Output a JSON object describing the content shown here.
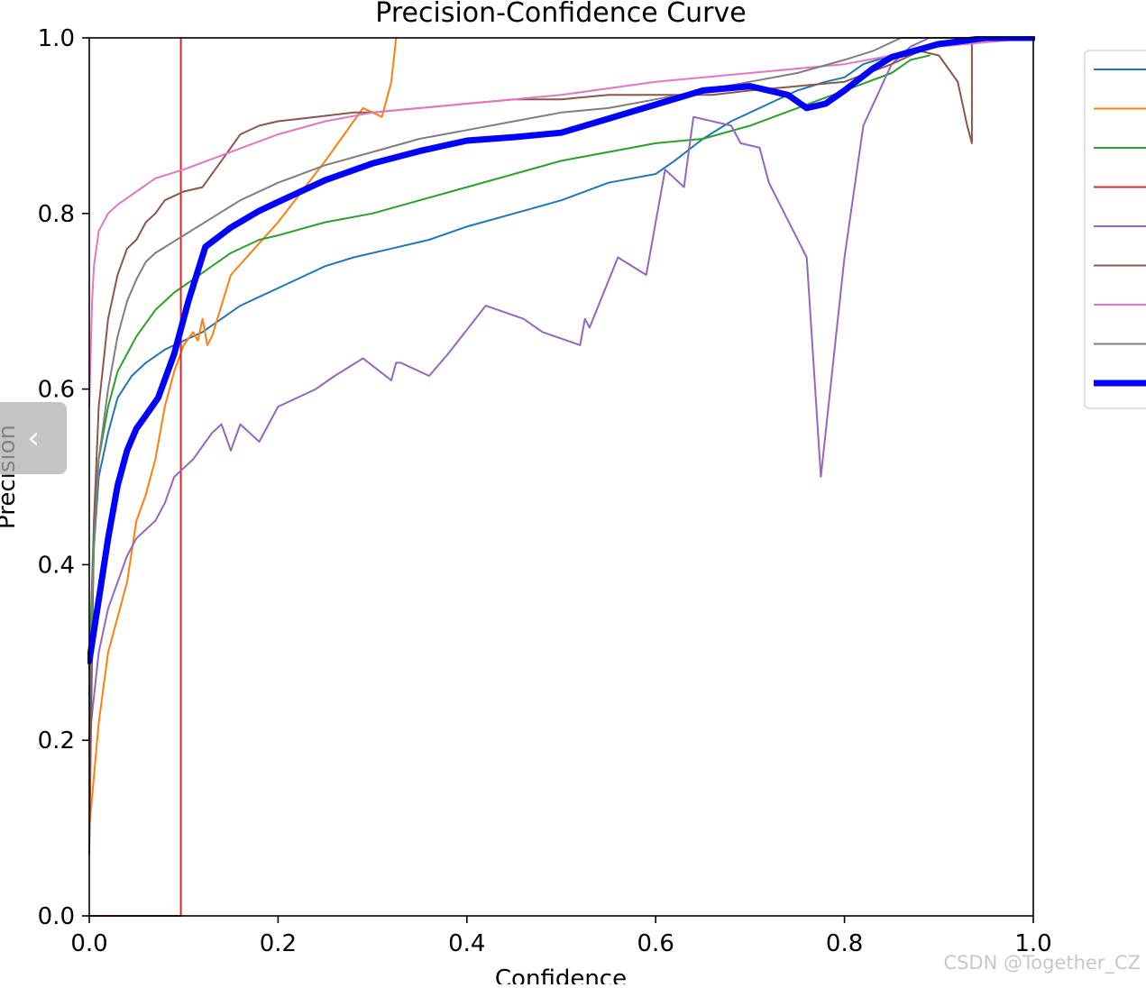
{
  "chart_data": {
    "type": "line",
    "title": "Precision-Confidence Curve",
    "xlabel": "Confidence",
    "ylabel": "Precision",
    "xlim": [
      0,
      1
    ],
    "ylim": [
      0,
      1
    ],
    "x_ticks": [
      "0.0",
      "0.2",
      "0.4",
      "0.6",
      "0.8",
      "1.0"
    ],
    "y_ticks": [
      "0.0",
      "0.2",
      "0.4",
      "0.6",
      "0.8",
      "1.0"
    ],
    "grid": false,
    "legend_position": "upper-right-outside",
    "series": [
      {
        "color": "#1f77b4",
        "width": 2,
        "x": [
          0.0,
          0.005,
          0.01,
          0.02,
          0.03,
          0.045,
          0.06,
          0.08,
          0.1,
          0.12,
          0.14,
          0.16,
          0.18,
          0.2,
          0.22,
          0.25,
          0.28,
          0.32,
          0.36,
          0.4,
          0.45,
          0.5,
          0.55,
          0.6,
          0.62,
          0.65,
          0.68,
          0.7,
          0.72,
          0.75,
          0.78,
          0.8,
          0.82,
          0.85,
          0.88,
          0.9,
          0.95,
          1.0
        ],
        "y": [
          0.2,
          0.42,
          0.5,
          0.55,
          0.59,
          0.615,
          0.63,
          0.645,
          0.655,
          0.665,
          0.68,
          0.695,
          0.705,
          0.715,
          0.725,
          0.74,
          0.75,
          0.76,
          0.77,
          0.785,
          0.8,
          0.815,
          0.835,
          0.845,
          0.86,
          0.885,
          0.905,
          0.915,
          0.925,
          0.94,
          0.95,
          0.955,
          0.97,
          0.98,
          0.985,
          0.995,
          1.0,
          1.0
        ]
      },
      {
        "color": "#ff7f0e",
        "width": 2,
        "x": [
          0.0,
          0.01,
          0.02,
          0.03,
          0.04,
          0.05,
          0.06,
          0.07,
          0.08,
          0.09,
          0.1,
          0.11,
          0.115,
          0.12,
          0.125,
          0.13,
          0.15,
          0.2,
          0.25,
          0.29,
          0.31,
          0.32,
          0.325
        ],
        "y": [
          0.1,
          0.22,
          0.3,
          0.34,
          0.38,
          0.45,
          0.48,
          0.52,
          0.58,
          0.62,
          0.65,
          0.665,
          0.655,
          0.68,
          0.65,
          0.66,
          0.73,
          0.79,
          0.86,
          0.92,
          0.91,
          0.95,
          1.0
        ]
      },
      {
        "color": "#2ca02c",
        "width": 2,
        "x": [
          0.0,
          0.005,
          0.01,
          0.02,
          0.03,
          0.05,
          0.07,
          0.09,
          0.11,
          0.13,
          0.15,
          0.18,
          0.2,
          0.25,
          0.3,
          0.35,
          0.4,
          0.45,
          0.5,
          0.55,
          0.6,
          0.65,
          0.7,
          0.75,
          0.8,
          0.85,
          0.87,
          0.89
        ],
        "y": [
          0.28,
          0.45,
          0.52,
          0.58,
          0.62,
          0.66,
          0.69,
          0.71,
          0.725,
          0.74,
          0.755,
          0.77,
          0.775,
          0.79,
          0.8,
          0.815,
          0.83,
          0.845,
          0.86,
          0.87,
          0.88,
          0.885,
          0.9,
          0.92,
          0.94,
          0.96,
          0.975,
          0.98
        ]
      },
      {
        "color": "#d62728",
        "width": 2,
        "x": [
          0.0,
          0.097,
          0.097
        ],
        "y": [
          0.0,
          0.0,
          1.0
        ]
      },
      {
        "color": "#9467bd",
        "width": 2,
        "x": [
          0.0,
          0.01,
          0.02,
          0.03,
          0.04,
          0.05,
          0.06,
          0.07,
          0.08,
          0.09,
          0.1,
          0.11,
          0.13,
          0.14,
          0.15,
          0.16,
          0.17,
          0.18,
          0.19,
          0.2,
          0.24,
          0.26,
          0.29,
          0.32,
          0.325,
          0.33,
          0.36,
          0.38,
          0.42,
          0.46,
          0.48,
          0.52,
          0.525,
          0.53,
          0.56,
          0.59,
          0.61,
          0.63,
          0.635,
          0.64,
          0.68,
          0.69,
          0.71,
          0.72,
          0.76,
          0.775,
          0.8,
          0.82,
          0.85,
          0.87,
          0.89
        ],
        "y": [
          0.2,
          0.3,
          0.35,
          0.38,
          0.41,
          0.43,
          0.44,
          0.45,
          0.47,
          0.5,
          0.51,
          0.52,
          0.55,
          0.56,
          0.53,
          0.56,
          0.55,
          0.54,
          0.56,
          0.58,
          0.6,
          0.615,
          0.635,
          0.61,
          0.63,
          0.63,
          0.615,
          0.64,
          0.695,
          0.68,
          0.665,
          0.65,
          0.68,
          0.67,
          0.75,
          0.73,
          0.85,
          0.83,
          0.87,
          0.91,
          0.9,
          0.88,
          0.875,
          0.835,
          0.75,
          0.5,
          0.75,
          0.9,
          0.97,
          0.99,
          1.0
        ]
      },
      {
        "color": "#8c564b",
        "width": 2,
        "x": [
          0.0,
          0.005,
          0.01,
          0.02,
          0.03,
          0.04,
          0.05,
          0.06,
          0.07,
          0.08,
          0.09,
          0.1,
          0.12,
          0.14,
          0.16,
          0.18,
          0.2,
          0.24,
          0.28,
          0.3,
          0.35,
          0.4,
          0.45,
          0.5,
          0.55,
          0.6,
          0.62,
          0.64,
          0.66,
          0.7,
          0.75,
          0.8,
          0.85,
          0.88,
          0.9,
          0.92,
          0.93,
          0.935,
          0.935,
          0.94,
          1.0
        ],
        "y": [
          0.07,
          0.45,
          0.58,
          0.68,
          0.73,
          0.76,
          0.77,
          0.79,
          0.8,
          0.815,
          0.82,
          0.825,
          0.83,
          0.86,
          0.89,
          0.9,
          0.905,
          0.91,
          0.915,
          0.915,
          0.92,
          0.925,
          0.93,
          0.93,
          0.935,
          0.935,
          0.935,
          0.935,
          0.935,
          0.94,
          0.945,
          0.95,
          0.97,
          0.985,
          0.98,
          0.95,
          0.9,
          0.88,
          1.0,
          1.0,
          1.0
        ]
      },
      {
        "color": "#e377c2",
        "width": 2,
        "x": [
          0.0,
          0.003,
          0.005,
          0.01,
          0.02,
          0.03,
          0.05,
          0.07,
          0.1,
          0.15,
          0.2,
          0.25,
          0.3,
          0.35,
          0.4,
          0.5,
          0.6,
          0.7,
          0.8,
          0.85,
          0.9,
          1.0
        ],
        "y": [
          0.58,
          0.7,
          0.74,
          0.78,
          0.8,
          0.81,
          0.825,
          0.84,
          0.85,
          0.87,
          0.89,
          0.905,
          0.915,
          0.92,
          0.925,
          0.935,
          0.95,
          0.96,
          0.97,
          0.98,
          0.99,
          1.0
        ]
      },
      {
        "color": "#7f7f7f",
        "width": 2,
        "x": [
          0.0,
          0.005,
          0.01,
          0.02,
          0.03,
          0.04,
          0.05,
          0.06,
          0.07,
          0.1,
          0.13,
          0.16,
          0.2,
          0.25,
          0.3,
          0.35,
          0.4,
          0.45,
          0.5,
          0.55,
          0.6,
          0.65,
          0.7,
          0.75,
          0.8,
          0.83,
          0.85,
          0.86,
          1.0
        ],
        "y": [
          0.25,
          0.42,
          0.52,
          0.6,
          0.66,
          0.7,
          0.725,
          0.745,
          0.755,
          0.775,
          0.795,
          0.815,
          0.835,
          0.855,
          0.87,
          0.885,
          0.895,
          0.905,
          0.915,
          0.92,
          0.93,
          0.94,
          0.95,
          0.96,
          0.975,
          0.985,
          0.995,
          1.0,
          1.0
        ]
      },
      {
        "color": "#0000ff",
        "width": 7,
        "x": [
          0.0,
          0.01,
          0.02,
          0.03,
          0.04,
          0.05,
          0.06,
          0.073,
          0.09,
          0.105,
          0.123,
          0.15,
          0.18,
          0.2,
          0.25,
          0.3,
          0.35,
          0.4,
          0.45,
          0.5,
          0.55,
          0.6,
          0.65,
          0.7,
          0.74,
          0.76,
          0.78,
          0.8,
          0.83,
          0.85,
          0.9,
          0.95,
          1.0
        ],
        "y": [
          0.29,
          0.36,
          0.43,
          0.49,
          0.53,
          0.555,
          0.57,
          0.59,
          0.64,
          0.7,
          0.762,
          0.784,
          0.803,
          0.813,
          0.838,
          0.857,
          0.871,
          0.883,
          0.887,
          0.892,
          0.908,
          0.924,
          0.94,
          0.945,
          0.935,
          0.92,
          0.925,
          0.94,
          0.965,
          0.978,
          0.993,
          1.0,
          1.0
        ]
      }
    ]
  },
  "ui": {
    "back_icon_glyph": "‹",
    "watermark": "CSDN @Together_CZ"
  }
}
